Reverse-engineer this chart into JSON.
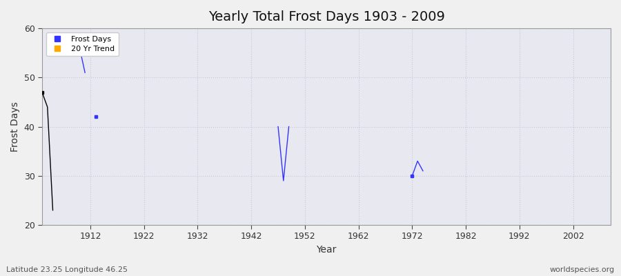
{
  "title": "Yearly Total Frost Days 1903 - 2009",
  "xlabel": "Year",
  "ylabel": "Frost Days",
  "subtitle": "Latitude 23.25 Longitude 46.25",
  "watermark": "worldspecies.org",
  "xlim": [
    1903,
    2009
  ],
  "ylim": [
    20,
    60
  ],
  "yticks": [
    20,
    30,
    40,
    50,
    60
  ],
  "xticks": [
    1912,
    1922,
    1932,
    1942,
    1952,
    1962,
    1972,
    1982,
    1992,
    2002
  ],
  "line_segments": [
    {
      "x": [
        1903,
        1904,
        1905
      ],
      "y": [
        47,
        44,
        23
      ],
      "color": "#000000"
    },
    {
      "x": [
        1910,
        1911
      ],
      "y": [
        56,
        51
      ],
      "color": "#3333ff"
    },
    {
      "x": [
        1947,
        1948,
        1949
      ],
      "y": [
        40,
        29,
        40
      ],
      "color": "#3333ff"
    },
    {
      "x": [
        1972,
        1973,
        1974
      ],
      "y": [
        30,
        33,
        31
      ],
      "color": "#3333ff"
    }
  ],
  "point_groups": [
    {
      "x": [
        1903
      ],
      "y": [
        47
      ],
      "color": "#000000"
    },
    {
      "x": [
        1913
      ],
      "y": [
        42
      ],
      "color": "#3333ff"
    },
    {
      "x": [
        1972
      ],
      "y": [
        30
      ],
      "color": "#3333ff"
    }
  ],
  "frost_color": "#3333ff",
  "trend_color": "#ffaa00",
  "bg_color": "#f0f0f0",
  "grid_color": "#c8c8d8",
  "plot_bg": "#e8e8f0",
  "spine_color": "#999999"
}
